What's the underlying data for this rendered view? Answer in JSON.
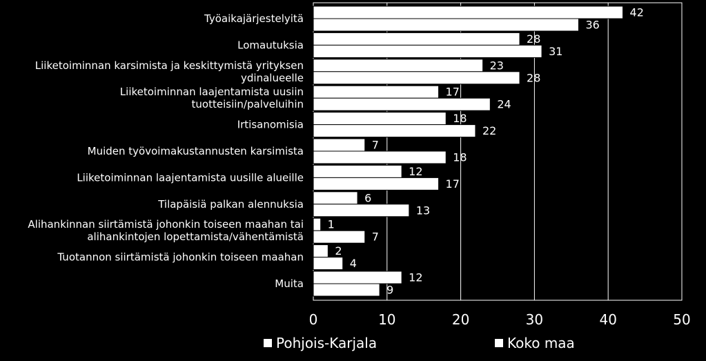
{
  "chart_data": {
    "type": "bar",
    "orientation": "horizontal",
    "title": "",
    "xlabel": "",
    "ylabel": "",
    "xlim": [
      0,
      50
    ],
    "x_ticks": [
      0,
      10,
      20,
      30,
      40,
      50
    ],
    "grid": true,
    "legend_position": "bottom",
    "categories": [
      [
        "Työaikajärjestelyitä"
      ],
      [
        "Lomautuksia"
      ],
      [
        "Liiketoiminnan karsimista ja keskittymistä yrityksen",
        "ydinalueelle"
      ],
      [
        "Liiketoiminnan laajentamista uusiin",
        "tuotteisiin/palveluihin"
      ],
      [
        "Irtisanomisia"
      ],
      [
        "Muiden työvoimakustannusten karsimista"
      ],
      [
        "Liiketoiminnan laajentamista uusille alueille"
      ],
      [
        "Tilapäisiä palkan alennuksia"
      ],
      [
        "Alihankinnan siirtämistä johonkin toiseen maahan tai",
        "alihankintojen lopettamista/vähentämistä"
      ],
      [
        "Tuotannon siirtämistä johonkin toiseen maahan"
      ],
      [
        "Muita"
      ]
    ],
    "series": [
      {
        "name": "Pohjois-Karjala",
        "color": "#ffffff",
        "values": [
          42,
          28,
          23,
          17,
          18,
          7,
          12,
          6,
          1,
          2,
          12
        ]
      },
      {
        "name": "Koko maa",
        "color": "#ffffff",
        "values": [
          36,
          31,
          28,
          24,
          22,
          18,
          17,
          13,
          7,
          4,
          9
        ]
      }
    ],
    "colors": {
      "background": "#000000",
      "bar": "#ffffff",
      "bar_outline": "#000000",
      "text": "#ffffff",
      "grid": "#ffffff"
    }
  },
  "legend": {
    "items": [
      {
        "label": "Pohjois-Karjala"
      },
      {
        "label": "Koko maa"
      }
    ]
  }
}
